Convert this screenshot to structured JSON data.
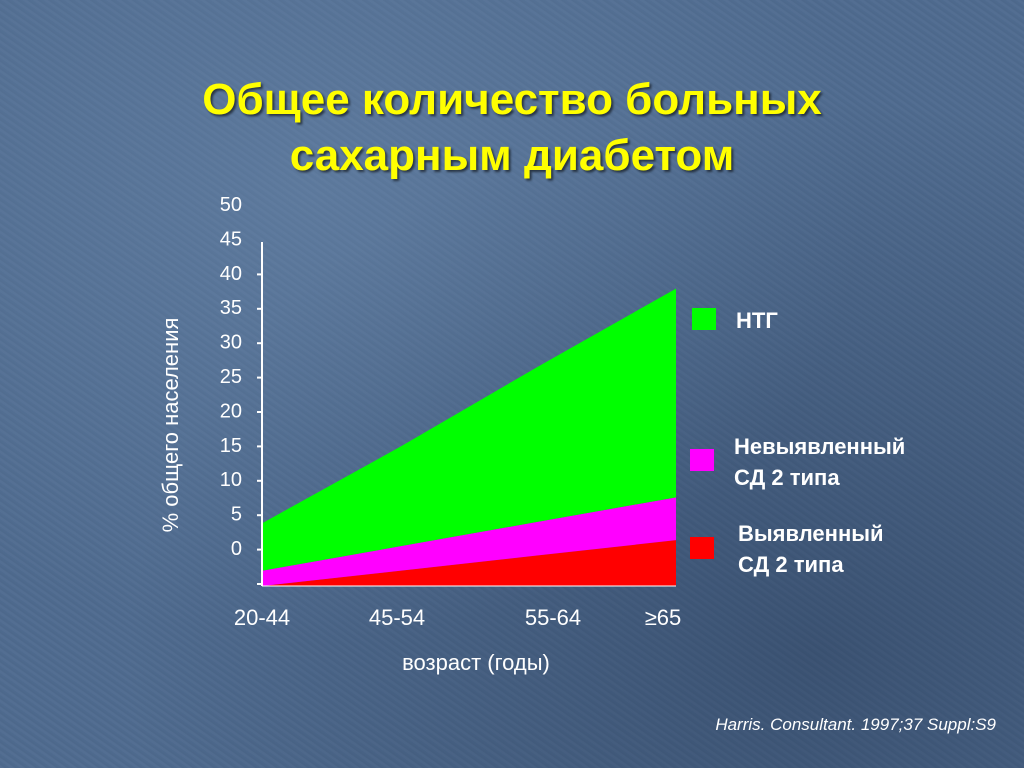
{
  "title": {
    "line1": "Общее количество больных",
    "line2": "сахарным диабетом"
  },
  "citation": "Harris. Consultant. 1997;37 Suppl:S9",
  "chart_data": {
    "type": "area",
    "stacked": true,
    "title": "Общее количество больных сахарным диабетом",
    "xlabel": "возраст (годы)",
    "ylabel": "% общего населения",
    "categories": [
      "20-44",
      "45-54",
      "55-64",
      "≥65"
    ],
    "yticks": [
      "50",
      "45",
      "40",
      "35",
      "30",
      "25",
      "20",
      "15",
      "10",
      "5",
      "0"
    ],
    "ylim": [
      0,
      45
    ],
    "grid": false,
    "legend_position": "right",
    "series": [
      {
        "name": "Выявленный СД 2 типа",
        "color": "#ff0000",
        "values": [
          0,
          2,
          4,
          6
        ]
      },
      {
        "name": "Невыявленный СД 2 типа",
        "color": "#ff00ff",
        "values": [
          2,
          3.2,
          4.4,
          5.6
        ]
      },
      {
        "name": "НТГ",
        "color": "#00ff00",
        "values": [
          6.2,
          13,
          20.3,
          27.3
        ]
      }
    ],
    "legend": [
      {
        "lines": [
          "НТГ"
        ],
        "color": "#00ff00"
      },
      {
        "lines": [
          "Невыявленный",
          "СД 2 типа"
        ],
        "color": "#ff00ff"
      },
      {
        "lines": [
          "Выявленный",
          "СД 2 типа"
        ],
        "color": "#ff0000"
      }
    ]
  }
}
